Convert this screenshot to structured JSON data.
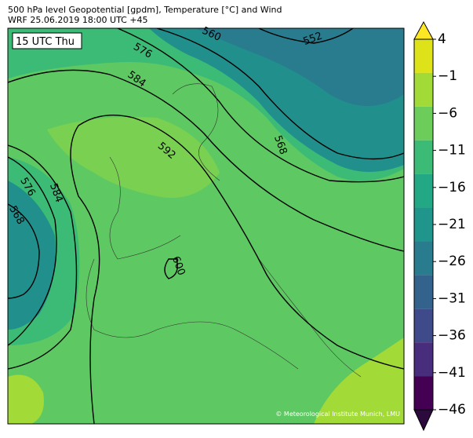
{
  "header": {
    "line1": "500 hPa level Geopotential [gpdm], Temperature [°C] and Wind",
    "line2": "WRF 25.06.2019 18:00 UTC +45"
  },
  "map": {
    "time_label": "15 UTC Thu",
    "contour_labels": [
      "560",
      "552",
      "576",
      "584",
      "592",
      "568",
      "576",
      "584",
      "568",
      "600"
    ],
    "copyright": "© Meteorological Institute Munich, LMU"
  },
  "colorbar": {
    "ticks": [
      4,
      {
        "value": -1,
        "label": "−1"
      },
      {
        "value": -6,
        "label": "−6"
      },
      {
        "value": -11,
        "label": "−11"
      },
      {
        "value": -16,
        "label": "−16"
      },
      {
        "value": -21,
        "label": "−21"
      },
      {
        "value": -26,
        "label": "−26"
      },
      {
        "value": -31,
        "label": "−31"
      },
      {
        "value": -36,
        "label": "−36"
      },
      {
        "value": -41,
        "label": "−41"
      },
      {
        "value": -46,
        "label": "−46"
      }
    ],
    "colors": [
      "#dde318",
      "#a2da37",
      "#6ccd5a",
      "#3bbb75",
      "#22a884",
      "#1f958b",
      "#287c8e",
      "#33638d",
      "#3f4a8a",
      "#472d7b",
      "#440154"
    ],
    "over_color": "#fde725",
    "under_color": "#2d0a3e"
  }
}
